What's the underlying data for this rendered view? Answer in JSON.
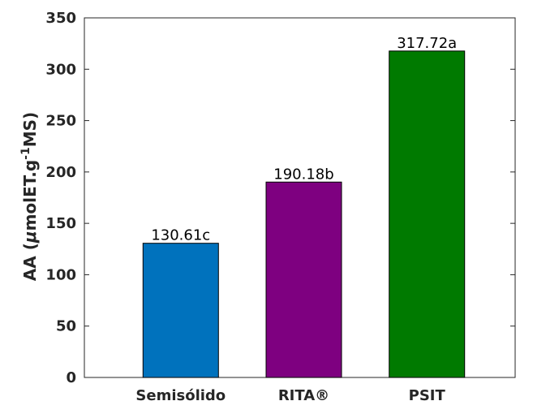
{
  "chart_data": {
    "type": "bar",
    "title": "",
    "xlabel": "",
    "ylabel": {
      "prefix": "AA (",
      "mu": "μ",
      "unit": "molET.g",
      "exponent": "-1",
      "suffix": "MS)"
    },
    "ylim": [
      0,
      350
    ],
    "yticks": [
      0,
      50,
      100,
      150,
      200,
      250,
      300,
      350
    ],
    "categories": [
      "Semisólido",
      "RITA®",
      "PSIT"
    ],
    "values": [
      130.61,
      190.18,
      317.72
    ],
    "data_labels": [
      "130.61c",
      "190.18b",
      "317.72a"
    ],
    "colors": [
      "#0072BD",
      "#7E0080",
      "#007A00"
    ],
    "grid": false,
    "legend": "none"
  }
}
